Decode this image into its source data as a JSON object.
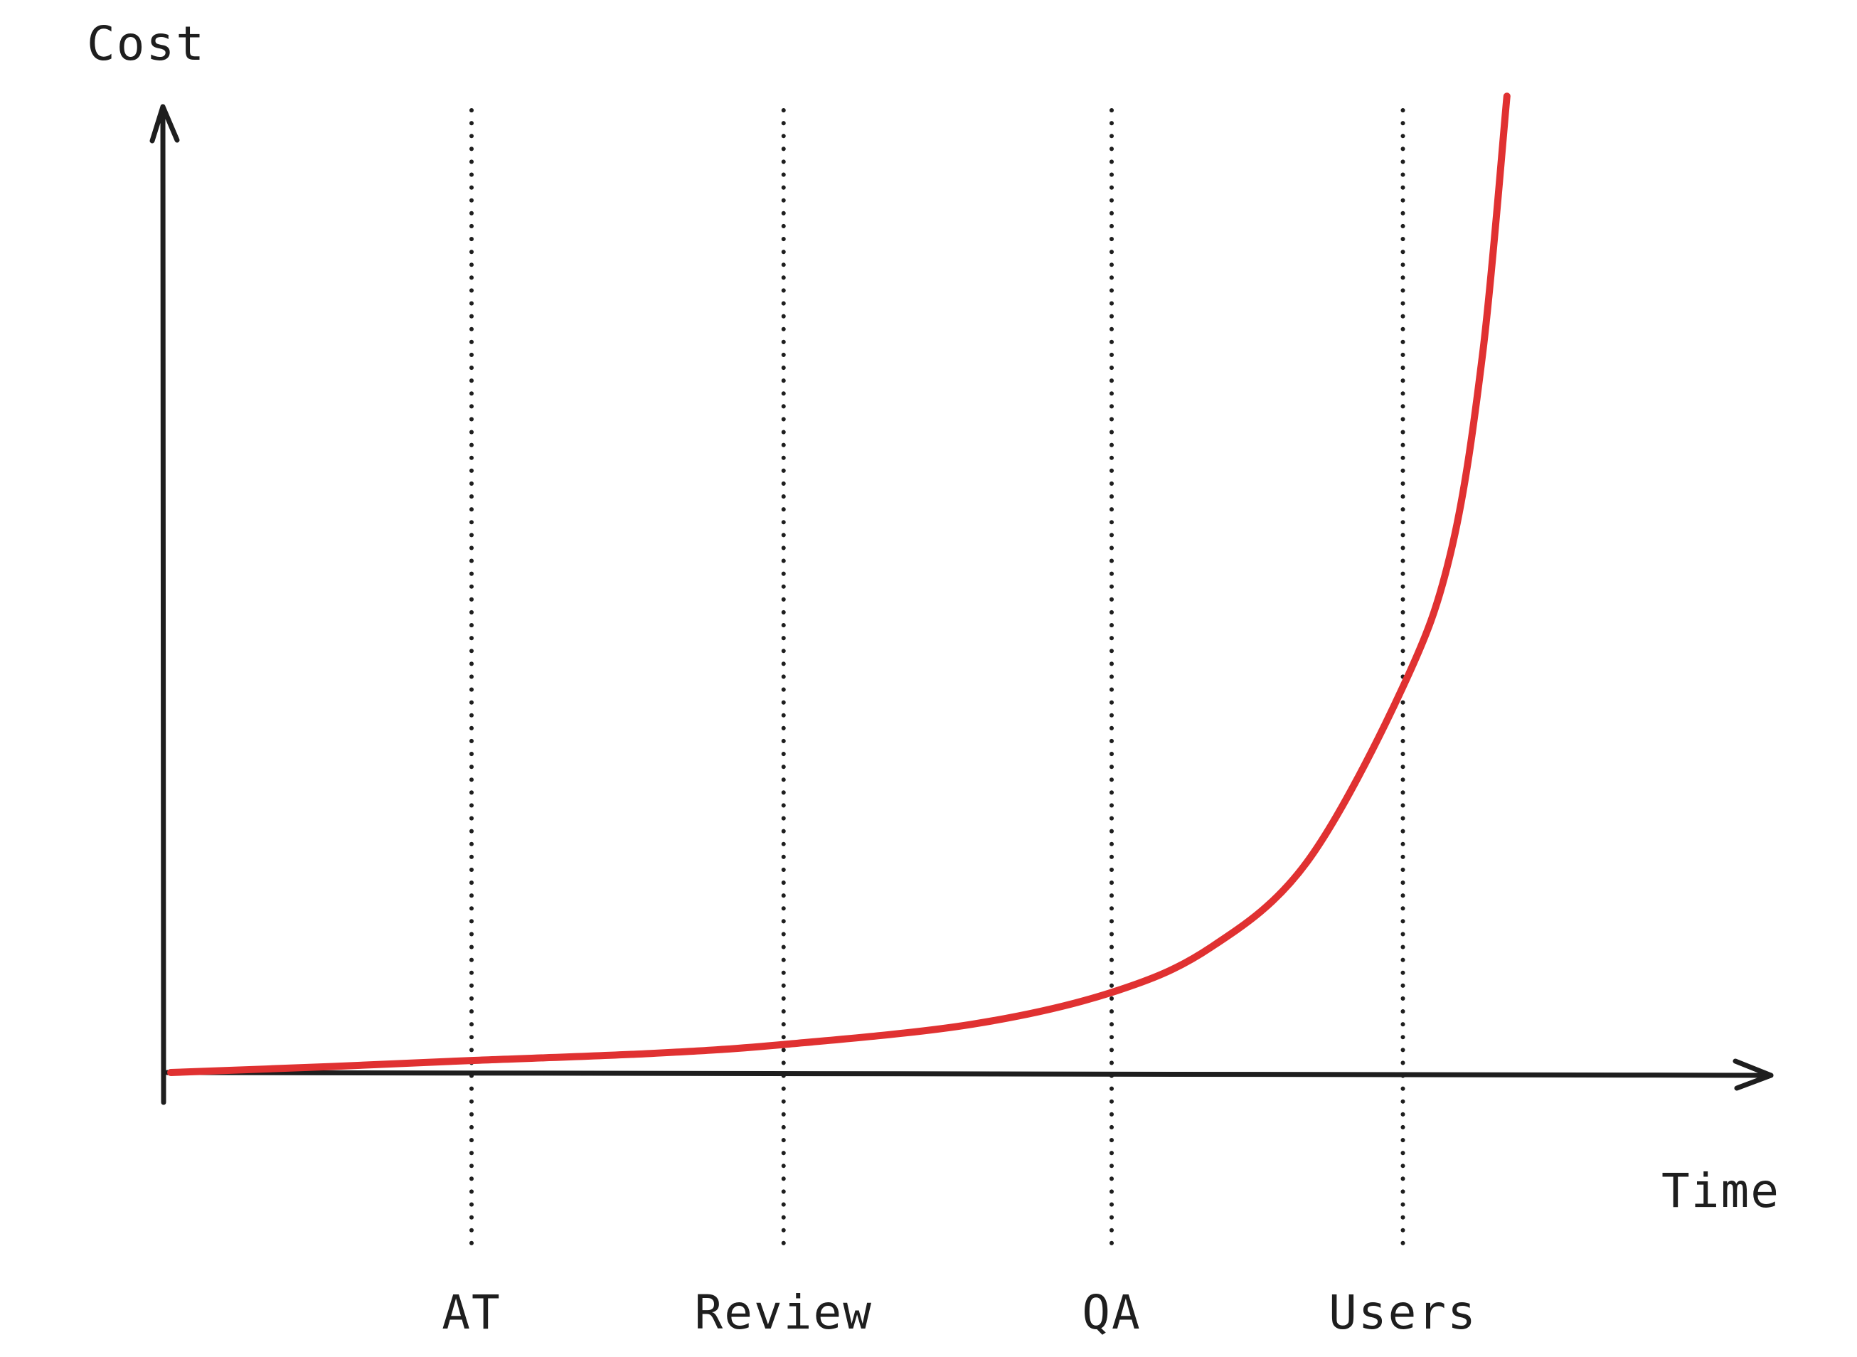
{
  "chart_data": {
    "type": "line",
    "xlabel": "Time",
    "ylabel": "Cost",
    "xlim": [
      0,
      1
    ],
    "ylim": [
      0,
      1
    ],
    "grid": false,
    "line_color": "#e03131",
    "axis_color": "#1e1e1e",
    "milestones": [
      {
        "label": "AT",
        "x": 0.188
      },
      {
        "label": "Review",
        "x": 0.383
      },
      {
        "label": "QA",
        "x": 0.588
      },
      {
        "label": "Users",
        "x": 0.77
      }
    ],
    "series": [
      {
        "x": [
          0.0,
          0.1,
          0.188,
          0.3,
          0.383,
          0.5,
          0.588,
          0.65,
          0.71,
          0.77,
          0.8,
          0.82,
          0.835
        ],
        "y": [
          0.0,
          0.006,
          0.012,
          0.019,
          0.028,
          0.048,
          0.08,
          0.125,
          0.21,
          0.385,
          0.52,
          0.72,
          0.975
        ]
      }
    ]
  }
}
